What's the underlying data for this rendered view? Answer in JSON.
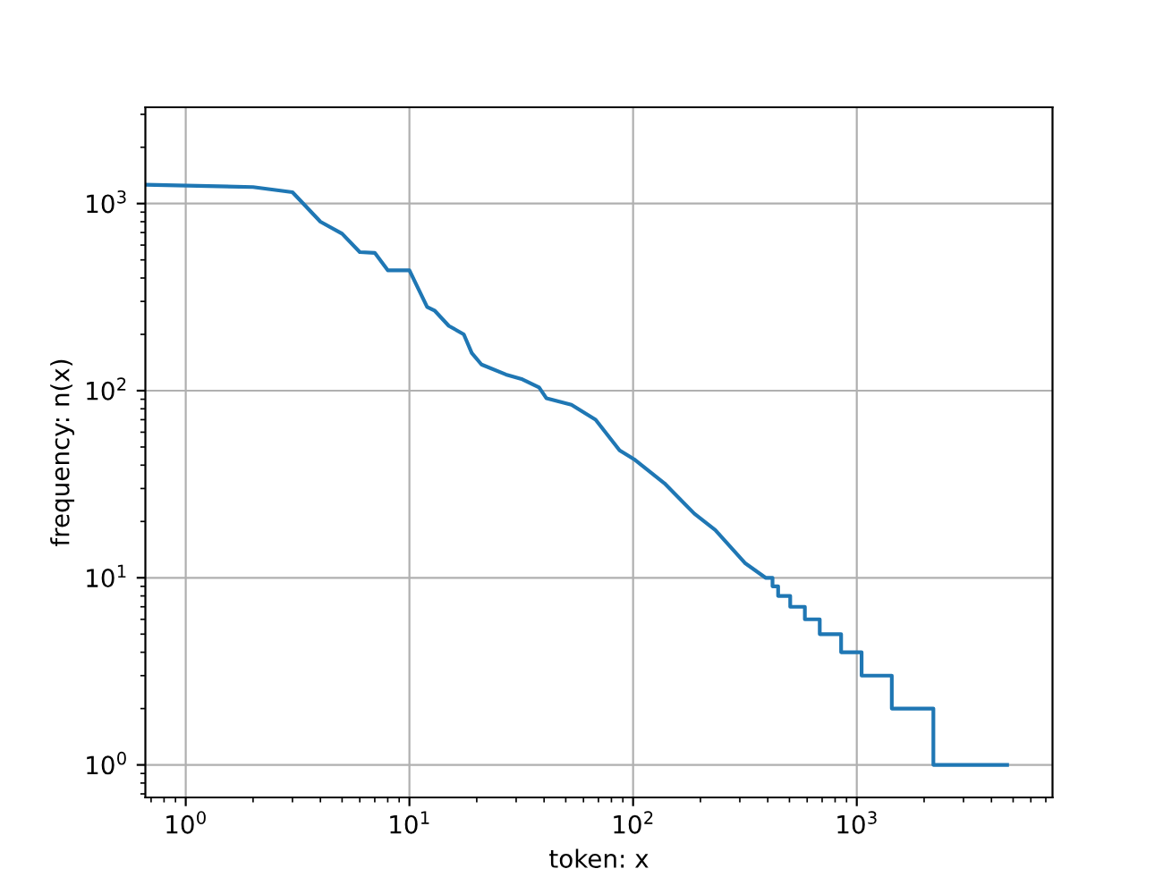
{
  "chart_data": {
    "type": "line",
    "xlabel": "token: x",
    "ylabel": "frequency: n(x)",
    "log": "xy",
    "grid": true,
    "xlim": [
      0.66,
      7500
    ],
    "ylim": [
      0.67,
      3270
    ],
    "xticks": [
      {
        "value": 1,
        "label": "10$^{0}$"
      },
      {
        "value": 10,
        "label": "10$^{1}$"
      },
      {
        "value": 100,
        "label": "10$^{2}$"
      },
      {
        "value": 1000,
        "label": "10$^{3}$"
      }
    ],
    "yticks": [
      {
        "value": 1,
        "label": "10$^{0}$"
      },
      {
        "value": 10,
        "label": "10$^{1}$"
      },
      {
        "value": 100,
        "label": "10$^{2}$"
      },
      {
        "value": 1000,
        "label": "10$^{3}$"
      }
    ],
    "series": [
      {
        "color": "#1f77b4",
        "x": [
          0.66,
          2,
          3,
          4,
          5,
          6,
          7,
          8,
          10,
          12,
          13,
          15,
          17.5,
          19,
          21,
          27,
          32,
          38,
          41,
          53,
          68,
          87,
          101,
          138,
          188,
          233,
          316,
          391,
          420,
          420,
          445,
          445,
          504,
          504,
          586,
          586,
          683,
          683,
          851,
          851,
          1051,
          1051,
          1434,
          1434,
          2200,
          2200,
          4700
        ],
        "values": [
          1260,
          1225,
          1150,
          800,
          690,
          550,
          545,
          440,
          440,
          280,
          267,
          222,
          200,
          159,
          138,
          122,
          115,
          104,
          91,
          84,
          70,
          48,
          43,
          32,
          22,
          18,
          12,
          10,
          10,
          9,
          9,
          8,
          8,
          7,
          7,
          6,
          6,
          5,
          5,
          4,
          4,
          3,
          3,
          2,
          2,
          1,
          1
        ]
      }
    ]
  }
}
